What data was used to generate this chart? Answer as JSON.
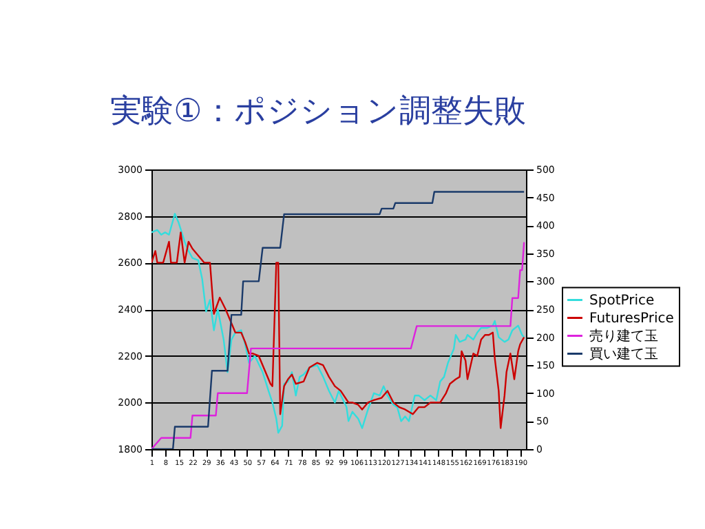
{
  "chart_data": {
    "type": "line",
    "title": "実験①：ポジション調整失敗",
    "xlim": [
      1,
      193
    ],
    "xticks": [
      1,
      8,
      15,
      22,
      29,
      36,
      43,
      50,
      57,
      64,
      71,
      78,
      85,
      92,
      99,
      106,
      113,
      120,
      127,
      134,
      141,
      148,
      155,
      162,
      169,
      176,
      183,
      190
    ],
    "ylim": [
      1800,
      3000
    ],
    "yticks": [
      1800,
      2000,
      2200,
      2400,
      2600,
      2800,
      3000
    ],
    "y2lim": [
      0,
      500
    ],
    "y2ticks": [
      0,
      50,
      100,
      150,
      200,
      250,
      300,
      350,
      400,
      450,
      500
    ],
    "grid": "y",
    "legend": "right",
    "series": [
      {
        "name": "SpotPrice",
        "color": "#33dddd",
        "x": [
          1,
          4,
          6,
          8,
          10,
          13,
          15,
          18,
          20,
          22,
          25,
          27,
          29,
          31,
          33,
          35,
          38,
          40,
          42,
          44,
          47,
          49,
          51,
          54,
          58,
          61,
          63,
          65,
          66,
          68,
          69,
          71,
          73,
          75,
          77,
          79,
          82,
          86,
          89,
          92,
          95,
          97,
          101,
          102,
          104,
          107,
          109,
          112,
          115,
          118,
          120,
          122,
          125,
          127,
          129,
          131,
          133,
          136,
          138,
          141,
          144,
          147,
          149,
          151,
          153,
          156,
          157,
          159,
          162,
          163,
          166,
          168,
          170,
          173,
          176,
          177,
          179,
          182,
          184,
          186,
          189,
          191,
          192
        ],
        "values": [
          2730,
          2740,
          2720,
          2730,
          2720,
          2810,
          2770,
          2690,
          2650,
          2620,
          2610,
          2530,
          2390,
          2440,
          2310,
          2400,
          2270,
          2130,
          2270,
          2300,
          2310,
          2250,
          2170,
          2200,
          2130,
          2050,
          2000,
          1930,
          1870,
          1900,
          2080,
          2090,
          2130,
          2030,
          2110,
          2120,
          2150,
          2160,
          2110,
          2050,
          2000,
          2050,
          1980,
          1920,
          1960,
          1930,
          1890,
          1970,
          2040,
          2030,
          2070,
          2030,
          1990,
          1980,
          1920,
          1940,
          1920,
          2030,
          2030,
          2010,
          2030,
          2010,
          2090,
          2110,
          2170,
          2230,
          2290,
          2260,
          2270,
          2290,
          2270,
          2300,
          2320,
          2320,
          2330,
          2350,
          2280,
          2260,
          2270,
          2310,
          2330,
          2290,
          2280
        ]
      },
      {
        "name": "FuturesPrice",
        "color": "#cc0000",
        "x": [
          1,
          3,
          4,
          7,
          10,
          11,
          14,
          16,
          18,
          20,
          22,
          26,
          28,
          31,
          33,
          36,
          39,
          42,
          44,
          47,
          49,
          51,
          53,
          56,
          59,
          62,
          63,
          65,
          66,
          67,
          69,
          71,
          73,
          75,
          79,
          82,
          86,
          89,
          92,
          95,
          98,
          102,
          104,
          107,
          109,
          112,
          115,
          119,
          122,
          125,
          128,
          131,
          135,
          138,
          141,
          144,
          147,
          149,
          152,
          154,
          157,
          159,
          160,
          162,
          163,
          166,
          168,
          170,
          172,
          174,
          176,
          177,
          179,
          180,
          182,
          183,
          185,
          187,
          189,
          190,
          192
        ],
        "values": [
          2600,
          2650,
          2600,
          2600,
          2690,
          2600,
          2600,
          2730,
          2600,
          2690,
          2660,
          2620,
          2600,
          2600,
          2380,
          2450,
          2400,
          2340,
          2300,
          2300,
          2260,
          2210,
          2210,
          2200,
          2140,
          2080,
          2070,
          2600,
          2600,
          1950,
          2070,
          2100,
          2120,
          2080,
          2090,
          2150,
          2170,
          2160,
          2110,
          2070,
          2050,
          2000,
          2000,
          1990,
          1970,
          2000,
          2010,
          2020,
          2050,
          2000,
          1980,
          1970,
          1950,
          1980,
          1980,
          2000,
          2000,
          2000,
          2040,
          2080,
          2100,
          2110,
          2220,
          2180,
          2100,
          2210,
          2200,
          2270,
          2290,
          2290,
          2300,
          2190,
          2050,
          1890,
          2030,
          2130,
          2210,
          2100,
          2220,
          2250,
          2280
        ]
      },
      {
        "name": "売り建て玉",
        "color": "#dd22dd",
        "axis": "y2",
        "x": [
          1,
          6,
          21,
          22,
          34,
          35,
          50,
          52,
          134,
          137,
          185,
          186,
          189,
          190,
          191,
          192
        ],
        "values": [
          0,
          20,
          20,
          60,
          60,
          100,
          100,
          180,
          180,
          220,
          220,
          270,
          270,
          320,
          320,
          370
        ]
      },
      {
        "name": "買い建て玉",
        "color": "#1a3a6a",
        "axis": "y2",
        "x": [
          1,
          12,
          13,
          30,
          32,
          40,
          42,
          47,
          48,
          56,
          58,
          67,
          69,
          118,
          119,
          125,
          126,
          145,
          146,
          192
        ],
        "values": [
          0,
          0,
          40,
          40,
          140,
          140,
          240,
          240,
          300,
          300,
          360,
          360,
          420,
          420,
          430,
          430,
          440,
          440,
          460,
          460
        ]
      }
    ]
  }
}
